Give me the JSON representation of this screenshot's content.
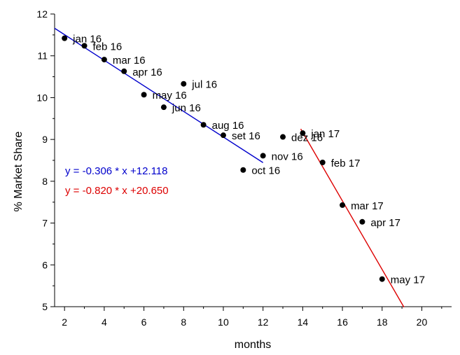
{
  "chart_data": {
    "type": "scatter",
    "xlabel": "months",
    "ylabel": "% Market Share",
    "xlim": [
      1.5,
      21.5
    ],
    "ylim": [
      5,
      12
    ],
    "x_ticks": [
      2,
      4,
      6,
      8,
      10,
      12,
      14,
      16,
      18,
      20
    ],
    "y_ticks": [
      5,
      6,
      7,
      8,
      9,
      10,
      11,
      12
    ],
    "grid": false,
    "colors": {
      "axis": "#000000",
      "points": "#000000",
      "fit1": "#0000cc",
      "fit2": "#dd0000"
    },
    "points": [
      {
        "x": 2,
        "y": 11.42,
        "label": "jan 16"
      },
      {
        "x": 3,
        "y": 11.24,
        "label": "feb 16"
      },
      {
        "x": 4,
        "y": 10.91,
        "label": "mar 16"
      },
      {
        "x": 5,
        "y": 10.63,
        "label": "apr 16"
      },
      {
        "x": 6,
        "y": 10.07,
        "label": "may 16"
      },
      {
        "x": 7,
        "y": 9.77,
        "label": "jun 16"
      },
      {
        "x": 8,
        "y": 10.33,
        "label": "jul 16"
      },
      {
        "x": 9,
        "y": 9.35,
        "label": "aug 16"
      },
      {
        "x": 10,
        "y": 9.1,
        "label": "set 16"
      },
      {
        "x": 11,
        "y": 8.27,
        "label": "oct 16"
      },
      {
        "x": 12,
        "y": 8.61,
        "label": "nov 16"
      },
      {
        "x": 13,
        "y": 9.06,
        "label": "dez 16"
      },
      {
        "x": 14,
        "y": 9.15,
        "label": "jan 17"
      },
      {
        "x": 15,
        "y": 8.45,
        "label": "feb 17"
      },
      {
        "x": 16,
        "y": 7.43,
        "label": "mar 17"
      },
      {
        "x": 17,
        "y": 7.03,
        "label": "apr 17"
      },
      {
        "x": 18,
        "y": 5.66,
        "label": "may 17"
      }
    ],
    "series": [
      {
        "slope": -0.306,
        "intercept": 12.118,
        "x_range": [
          1.5,
          12
        ],
        "equation": "y = -0.306 * x +12.118",
        "color": "#0000cc"
      },
      {
        "slope": -0.82,
        "intercept": 20.65,
        "x_range": [
          13.9,
          19.1
        ],
        "equation": "y = -0.820 * x +20.650",
        "color": "#dd0000"
      }
    ]
  }
}
